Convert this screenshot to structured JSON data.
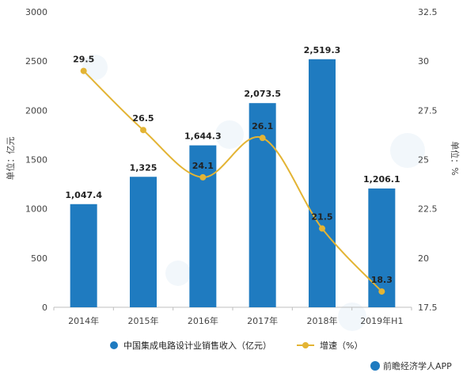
{
  "chart_data": {
    "type": "bar",
    "categories": [
      "2014年",
      "2015年",
      "2016年",
      "2017年",
      "2018年",
      "2019年H1"
    ],
    "series": [
      {
        "name": "中国集成电路设计业销售收入（亿元）",
        "type": "bar",
        "axis": "left",
        "values": [
          1047.4,
          1325,
          1644.3,
          2073.5,
          2519.3,
          1206.1
        ],
        "labels": [
          "1,047.4",
          "1,325",
          "1,644.3",
          "2,073.5",
          "2,519.3",
          "1,206.1"
        ],
        "color": "#1F7BC0"
      },
      {
        "name": "增速（%）",
        "type": "line",
        "axis": "right",
        "values": [
          29.5,
          26.5,
          24.1,
          26.1,
          21.5,
          18.3
        ],
        "labels": [
          "29.5",
          "26.5",
          "24.1",
          "26.1",
          "21.5",
          "18.3"
        ],
        "color": "#E3B434"
      }
    ],
    "ylabel_left": "单位：亿元",
    "ylabel_right": "单位：%",
    "ylim_left": [
      0,
      3000
    ],
    "yticks_left": [
      "0",
      "500",
      "1000",
      "1500",
      "2000",
      "2500",
      "3000"
    ],
    "ylim_right": [
      17.5,
      32.5
    ],
    "yticks_right": [
      "17.5",
      "20",
      "22.5",
      "25",
      "27.5",
      "30",
      "32.5"
    ],
    "legend_position": "bottom",
    "grid": false
  },
  "footer": {
    "source": "前瞻经济学人APP"
  },
  "colors": {
    "bar": "#1F7BC0",
    "line": "#E3B434",
    "axis": "#BFBFBF"
  }
}
